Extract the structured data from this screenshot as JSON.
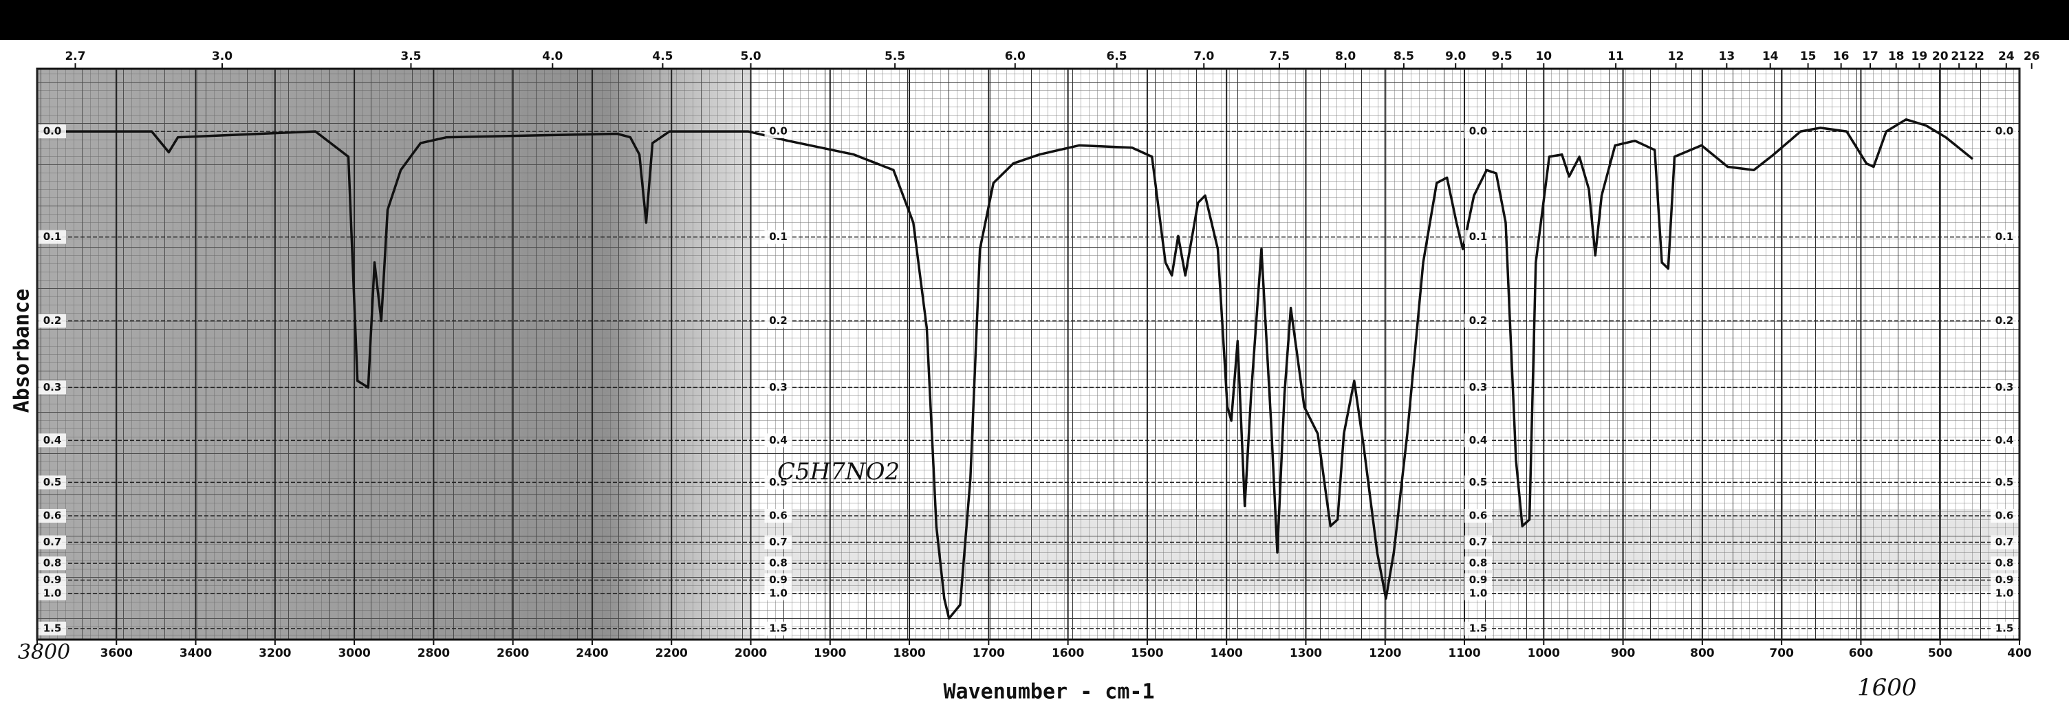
{
  "chart_data": {
    "type": "line",
    "x_label": "Wavenumber - cm-1",
    "y_label": "Absorbance",
    "color": "#111111",
    "xlim": [
      3800,
      400
    ],
    "xscale": {
      "break": 2000,
      "ratio": 2
    },
    "xticks": [
      3800,
      3600,
      3400,
      3200,
      3000,
      2800,
      2600,
      2400,
      2200,
      2000,
      1900,
      1800,
      1700,
      1600,
      1500,
      1400,
      1300,
      1200,
      1100,
      1000,
      900,
      800,
      700,
      600,
      500,
      400
    ],
    "x2ticks": [
      2.7,
      {
        "value": 3,
        "label": "3.0"
      },
      3.5,
      {
        "value": 4,
        "label": "4.0"
      },
      4.5,
      {
        "value": 5,
        "label": "5.0"
      },
      5.5,
      {
        "value": 6,
        "label": "6.0"
      },
      6.5,
      {
        "value": 7,
        "label": "7.0"
      },
      7.5,
      {
        "value": 8,
        "label": "8.0"
      },
      8.5,
      {
        "value": 9,
        "label": "9.0"
      },
      9.5,
      10,
      11,
      12,
      13,
      14,
      15,
      16,
      17,
      18,
      19,
      20,
      21,
      22,
      24,
      26
    ],
    "ylim": [
      -0.05,
      2
    ],
    "yscale": "transmittance",
    "yticks": [
      {
        "value": 0,
        "label": "0.0"
      },
      0.1,
      0.2,
      0.3,
      0.4,
      0.5,
      0.6,
      0.7,
      0.8,
      0.9,
      {
        "value": 1,
        "label": "1.0"
      },
      1.5
    ],
    "grid": true,
    "x": [
      3792,
      3511,
      3468,
      3445,
      3098,
      3015,
      2992,
      2965,
      2949,
      2932,
      2916,
      2883,
      2833,
      2767,
      2337,
      2304,
      2281,
      2264,
      2248,
      2205,
      2007,
      1953,
      1870,
      1820,
      1795,
      1778,
      1766,
      1756,
      1750,
      1736,
      1723,
      1711,
      1694,
      1669,
      1636,
      1586,
      1519,
      1494,
      1477,
      1469,
      1461,
      1452,
      1436,
      1427,
      1411,
      1399,
      1394,
      1386,
      1377,
      1369,
      1356,
      1344,
      1336,
      1327,
      1319,
      1302,
      1285,
      1269,
      1260,
      1252,
      1239,
      1227,
      1210,
      1199,
      1189,
      1172,
      1152,
      1135,
      1122,
      1110,
      1102,
      1088,
      1072,
      1060,
      1048,
      1035,
      1027,
      1018,
      1010,
      993,
      977,
      968,
      955,
      943,
      935,
      927,
      910,
      885,
      860,
      851,
      843,
      835,
      801,
      768,
      735,
      710,
      676,
      651,
      618,
      593,
      584,
      568,
      543,
      518,
      493,
      459
    ],
    "values": [
      0.0,
      0.0,
      0.018,
      0.005,
      0.0,
      0.022,
      0.289,
      0.3,
      0.128,
      0.2,
      0.072,
      0.034,
      0.01,
      0.005,
      0.002,
      0.005,
      0.02,
      0.085,
      0.01,
      0.0,
      0.0,
      0.008,
      0.02,
      0.034,
      0.085,
      0.21,
      0.636,
      1.045,
      1.29,
      1.11,
      0.49,
      0.113,
      0.046,
      0.028,
      0.02,
      0.012,
      0.014,
      0.022,
      0.128,
      0.143,
      0.099,
      0.143,
      0.065,
      0.058,
      0.113,
      0.334,
      0.36,
      0.228,
      0.568,
      0.312,
      0.113,
      0.36,
      0.745,
      0.312,
      0.183,
      0.334,
      0.386,
      0.636,
      0.613,
      0.386,
      0.289,
      0.413,
      0.745,
      1.045,
      0.745,
      0.386,
      0.128,
      0.046,
      0.041,
      0.085,
      0.113,
      0.058,
      0.034,
      0.037,
      0.085,
      0.444,
      0.636,
      0.613,
      0.128,
      0.022,
      0.02,
      0.04,
      0.022,
      0.052,
      0.12,
      0.058,
      0.012,
      0.008,
      0.016,
      0.128,
      0.135,
      0.022,
      0.012,
      0.031,
      0.034,
      0.02,
      0.0,
      -0.003,
      0.0,
      0.028,
      0.031,
      0.0,
      -0.01,
      -0.005,
      0.005,
      0.024
    ],
    "annotations": [
      "C5H7NO2",
      "1600"
    ]
  }
}
